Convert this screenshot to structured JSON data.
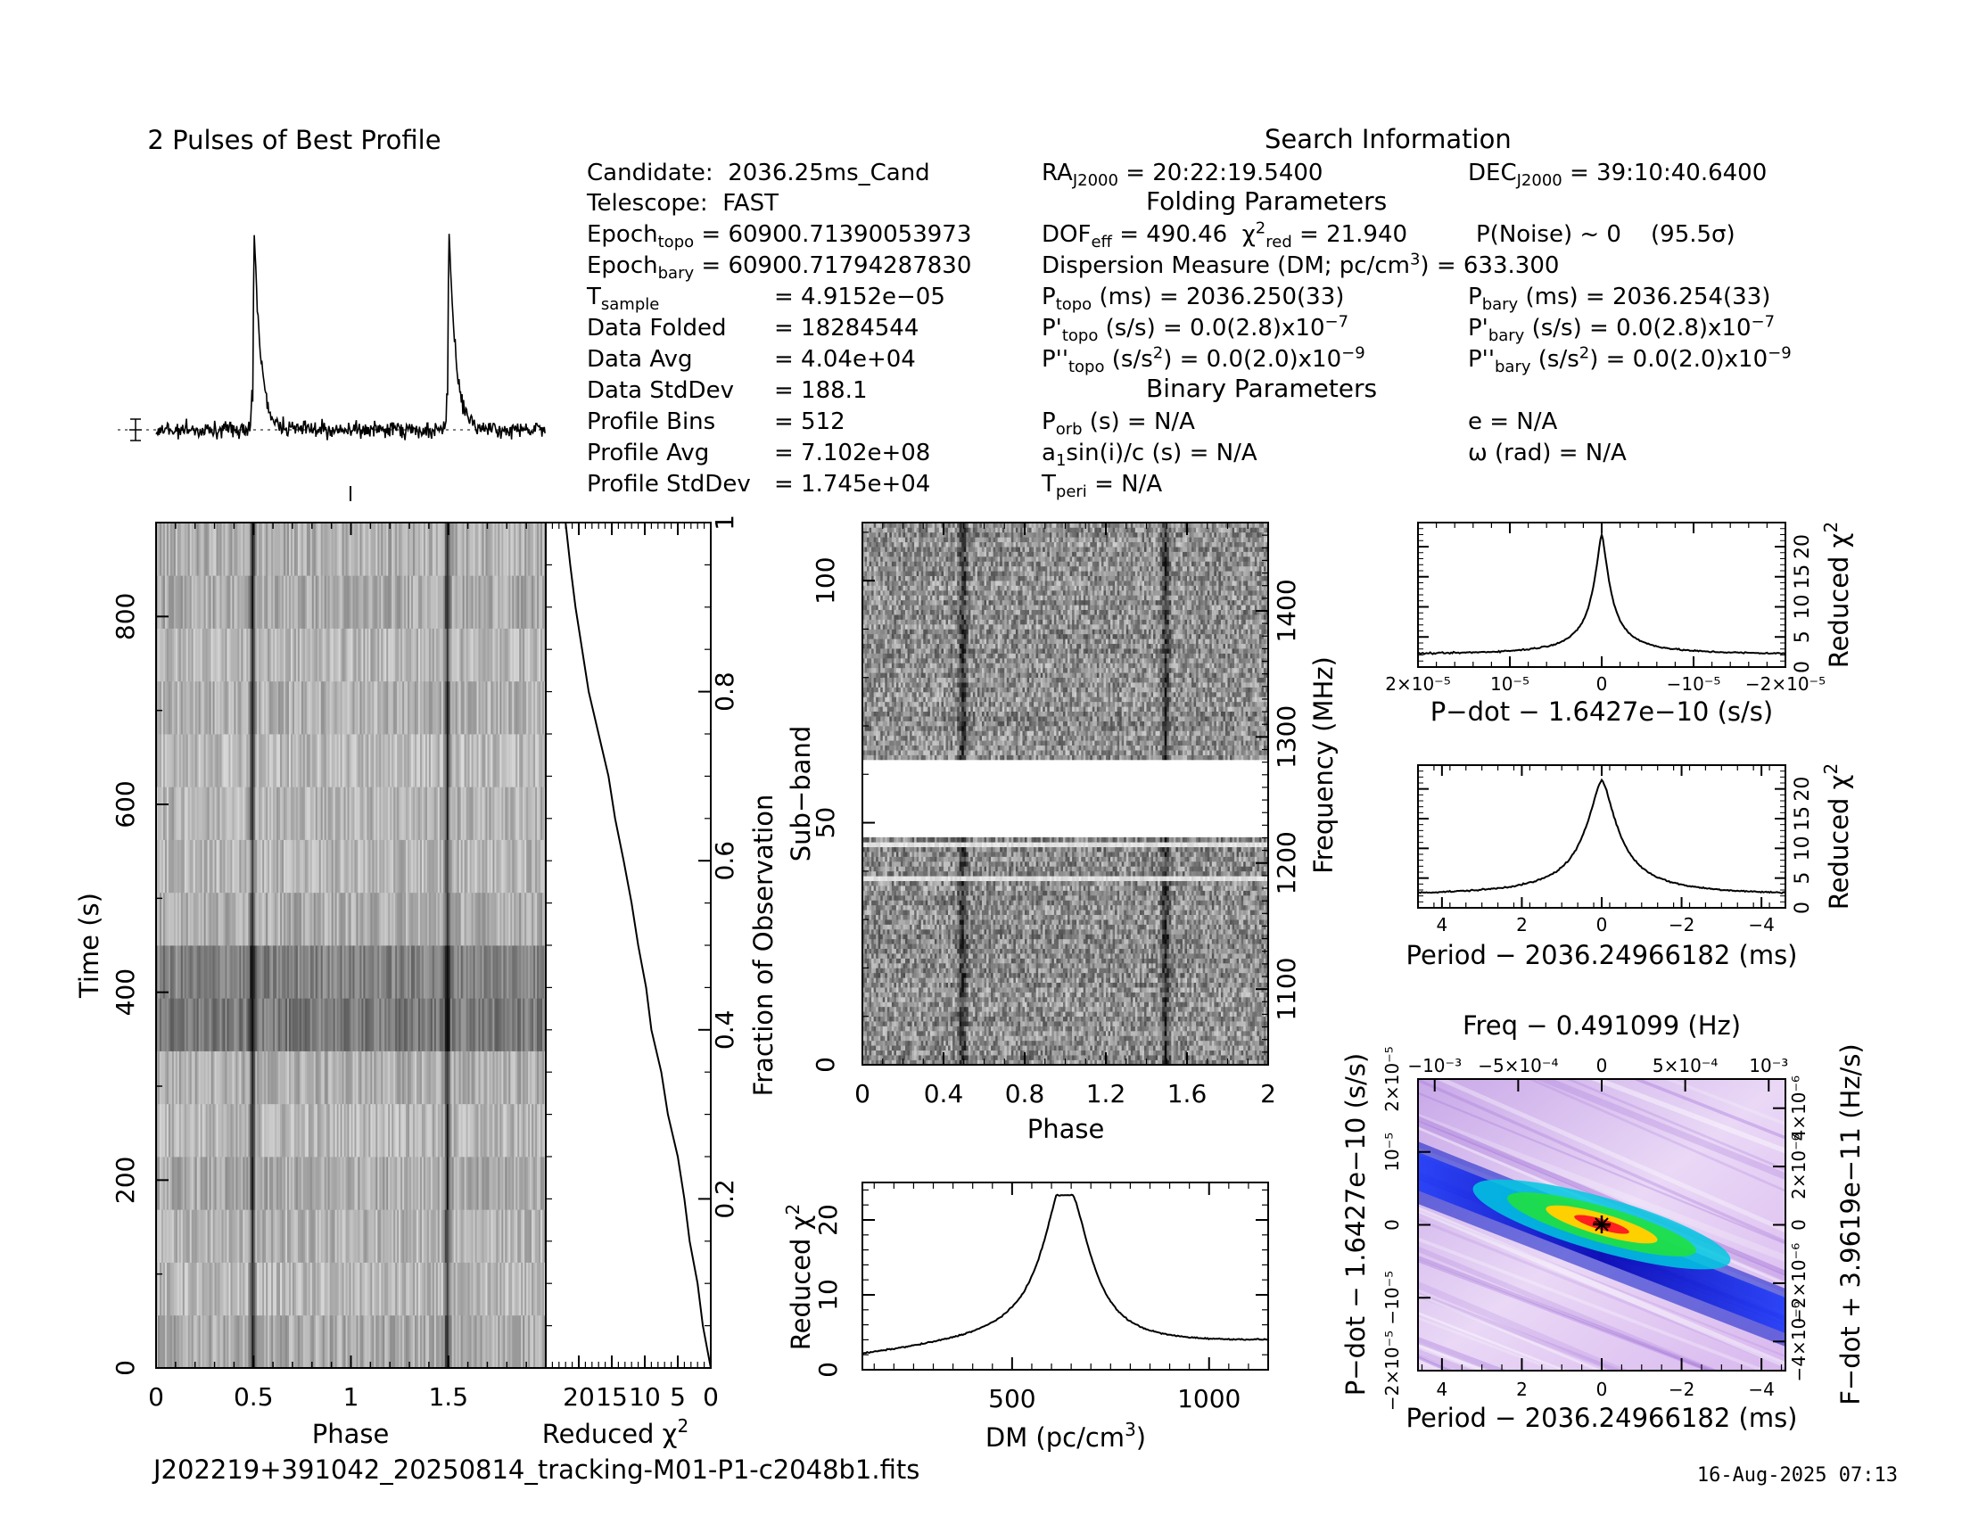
{
  "profile_title": "2 Pulses of Best Profile",
  "search_info_title": "Search Information",
  "folding_title": "Folding Parameters",
  "binary_title": "Binary Parameters",
  "filename": "J202219+391042_20250814_tracking-M01-P1-c2048b1.fits",
  "timestamp": "16-Aug-2025 07:13",
  "left_params": {
    "candidate_label": "Candidate:",
    "candidate_value": "2036.25ms_Cand",
    "telescope_label": "Telescope:",
    "telescope_value": "FAST",
    "epoch_topo_label": "Epoch",
    "epoch_topo_sub": "topo",
    "epoch_topo_value": "= 60900.71390053973",
    "epoch_bary_label": "Epoch",
    "epoch_bary_sub": "bary",
    "epoch_bary_value": "= 60900.71794287830",
    "tsample_label": "T",
    "tsample_sub": "sample",
    "tsample_value": "=  4.9152e−05",
    "data_folded_label": "Data Folded",
    "data_folded_value": "=  18284544",
    "data_avg_label": "Data Avg",
    "data_avg_value": "=  4.04e+04",
    "data_std_label": "Data StdDev",
    "data_std_value": "=  188.1",
    "prof_bins_label": "Profile Bins",
    "prof_bins_value": "=  512",
    "prof_avg_label": "Profile Avg",
    "prof_avg_value": "=  7.102e+08",
    "prof_std_label": "Profile StdDev",
    "prof_std_value": "=  1.745e+04"
  },
  "mid_params": {
    "ra_label": "RA",
    "ra_sub": "J2000",
    "ra_value": "= 20:22:19.5400",
    "dof_label": "DOF",
    "dof_sub": "eff",
    "dof_value": "= 490.46",
    "chi_label": "χ",
    "chi_sup": "2",
    "chi_sub": "red",
    "chi_value": "= 21.940",
    "pnoise_label": "P(Noise) ~ 0",
    "pnoise_sigma": "(95.5σ)",
    "dm_line_a": "Dispersion Measure (DM; pc/cm",
    "dm_line_sup": "3",
    "dm_line_b": ") = 633.300",
    "ptopo_label": "P",
    "ptopo_sub": "topo",
    "ptopo_value": "(ms)  =  2036.250(33)",
    "pdtopo_label": "P'",
    "pdtopo_sub": "topo",
    "pdtopo_value": "(s/s) = 0.0(2.8)x10",
    "pdtopo_exp": "−7",
    "pddtopo_label": "P''",
    "pddtopo_sub": "topo",
    "pddtopo_value_a": "(s/s",
    "pddtopo_value_sup": "2",
    "pddtopo_value_b": ") = 0.0(2.0)x10",
    "pddtopo_exp": "−9",
    "porb_label": "P",
    "porb_sub": "orb",
    "porb_value": "(s) = N/A",
    "a1_label": "a",
    "a1_sub": "1",
    "a1_value": "sin(i)/c (s) = N/A",
    "tperi_label": "T",
    "tperi_sub": "peri",
    "tperi_value": "= N/A"
  },
  "right_params": {
    "dec_label": "DEC",
    "dec_sub": "J2000",
    "dec_value": "= 39:10:40.6400",
    "pbary_label": "P",
    "pbary_sub": "bary",
    "pbary_value": "(ms) =  2036.254(33)",
    "pdbary_label": "P'",
    "pdbary_sub": "bary",
    "pdbary_value": "(s/s) = 0.0(2.8)x10",
    "pdbary_exp": "−7",
    "pddbary_label": "P''",
    "pddbary_sub": "bary",
    "pddbary_value_a": "(s/s",
    "pddbary_value_sup": "2",
    "pddbary_value_b": ") = 0.0(2.0)x10",
    "pddbary_exp": "−9",
    "e_value": "e = N/A",
    "omega_value": "ω (rad) = N/A"
  },
  "chart_data": [
    {
      "id": "profile",
      "type": "line",
      "title": "2 Pulses of Best Profile",
      "xlim": [
        0,
        2
      ],
      "peaks_phase": [
        0.495,
        1.495
      ],
      "peak_height_rel": 1.0,
      "baseline_rel": 0.0
    },
    {
      "id": "time_phase",
      "type": "heatmap",
      "xlabel": "Phase",
      "ylabel": "Time (s)",
      "xlim": [
        0,
        2
      ],
      "ylim": [
        0,
        900
      ],
      "x_ticks": [
        "0",
        "0.5",
        "1",
        "1.5"
      ],
      "x_tick_values": [
        0,
        0.5,
        1,
        1.5
      ],
      "y_ticks": [
        "0",
        "200",
        "400",
        "600",
        "800"
      ],
      "y_tick_values": [
        0,
        200,
        400,
        600,
        800
      ],
      "pulse_phases": [
        0.495,
        1.495
      ],
      "time_segments": 16,
      "dark_segments_s": [
        [
          340,
          395
        ],
        [
          395,
          455
        ]
      ]
    },
    {
      "id": "chi_vs_time",
      "type": "line",
      "xlabel": "Reduced χ",
      "xlabel_sup": "2",
      "ylabel_right": "Fraction of Observation",
      "x_ticks": [
        "20",
        "15",
        "10",
        "5",
        "0"
      ],
      "x_tick_values": [
        20,
        15,
        10,
        5,
        0
      ],
      "x_range": [
        25,
        0
      ],
      "y_ticks": [
        "0.2",
        "0.4",
        "0.6",
        "0.8",
        "1"
      ],
      "y_tick_values": [
        0.2,
        0.4,
        0.6,
        0.8,
        1
      ],
      "ylim": [
        0,
        1
      ],
      "points": [
        [
          0,
          0
        ],
        [
          0.05,
          1.2
        ],
        [
          0.1,
          2.0
        ],
        [
          0.15,
          3.2
        ],
        [
          0.2,
          4.0
        ],
        [
          0.25,
          5.0
        ],
        [
          0.3,
          6.5
        ],
        [
          0.35,
          7.5
        ],
        [
          0.4,
          9.0
        ],
        [
          0.45,
          9.8
        ],
        [
          0.5,
          11.0
        ],
        [
          0.55,
          12.0
        ],
        [
          0.6,
          13.2
        ],
        [
          0.65,
          14.5
        ],
        [
          0.7,
          15.5
        ],
        [
          0.75,
          17.0
        ],
        [
          0.8,
          18.5
        ],
        [
          0.85,
          19.5
        ],
        [
          0.9,
          20.5
        ],
        [
          0.95,
          21.3
        ],
        [
          1.0,
          22.0
        ]
      ]
    },
    {
      "id": "subband_phase",
      "type": "heatmap",
      "xlabel": "Phase",
      "ylabel": "Sub−band",
      "ylabel_right": "Frequency (MHz)",
      "xlim": [
        0,
        2
      ],
      "ylim": [
        0,
        112
      ],
      "x_ticks": [
        "0",
        "0.4",
        "0.8",
        "1.2",
        "1.6",
        "2"
      ],
      "x_tick_values": [
        0,
        0.4,
        0.8,
        1.2,
        1.6,
        2
      ],
      "y_ticks": [
        "0",
        "50",
        "100"
      ],
      "y_tick_values": [
        0,
        50,
        100
      ],
      "freq_ticks": [
        "1100",
        "1200",
        "1300",
        "1400"
      ],
      "freq_tick_values": [
        1100,
        1200,
        1300,
        1400
      ],
      "freq_range": [
        1040,
        1470
      ],
      "pulse_phases": [
        0.495,
        1.495
      ],
      "masked_bands": [
        [
          47,
          63
        ]
      ],
      "weak_bands": [
        [
          38,
          39
        ],
        [
          45,
          46
        ]
      ]
    },
    {
      "id": "dm_curve",
      "type": "line",
      "xlabel": "DM (pc/cm",
      "xlabel_sup": "3",
      "xlabel_end": ")",
      "ylabel": "Reduced χ",
      "ylabel_sup": "2",
      "xlim": [
        120,
        1150
      ],
      "ylim": [
        0,
        25
      ],
      "x_ticks": [
        "500",
        "1000"
      ],
      "x_tick_values": [
        500,
        1000
      ],
      "y_ticks": [
        "0",
        "10",
        "20"
      ],
      "y_tick_values": [
        0,
        10,
        20
      ],
      "peak_x": 640,
      "peak_y": 23.3,
      "base_y": 1.8
    },
    {
      "id": "pdot_curve",
      "type": "line",
      "xlabel": "P−dot − 1.6427e−10 (s/s)",
      "ylabel_right": "Reduced χ",
      "ylabel_right_sup": "2",
      "xlim": [
        2e-05,
        -2e-05
      ],
      "ylim": [
        0,
        24
      ],
      "x_ticks": [
        "2×10⁻⁵",
        "10⁻⁵",
        "0",
        "−10⁻⁵",
        "−2×10⁻⁵"
      ],
      "x_tick_values": [
        2e-05,
        1e-05,
        0,
        -1e-05,
        -2e-05
      ],
      "y_ticks": [
        "0",
        "5",
        "10",
        "15",
        "20"
      ],
      "y_tick_values": [
        0,
        5,
        10,
        15,
        20
      ],
      "peak_x": 0,
      "peak_y": 22.0,
      "base_y": 2.0
    },
    {
      "id": "period_curve",
      "type": "line",
      "xlabel": "Period − 2036.24966182 (ms)",
      "ylabel_right": "Reduced χ",
      "ylabel_right_sup": "2",
      "xlim": [
        4.6,
        -4.6
      ],
      "ylim": [
        0,
        24
      ],
      "x_ticks": [
        "4",
        "2",
        "0",
        "−2",
        "−4"
      ],
      "x_tick_values": [
        4,
        2,
        0,
        -2,
        -4
      ],
      "y_ticks": [
        "0",
        "5",
        "10",
        "15",
        "20"
      ],
      "y_tick_values": [
        0,
        5,
        10,
        15,
        20
      ],
      "peak_x": 0,
      "peak_y": 21.5,
      "base_y": 2.0
    },
    {
      "id": "period_pdot",
      "type": "heatmap",
      "title": "Freq − 0.491099 (Hz)",
      "xlabel": "Period − 2036.24966182 (ms)",
      "ylabel": "P−dot − 1.6427e−10 (s/s)",
      "ylabel_right": "F−dot + 3.9619e−11 (Hz/s)",
      "xlim": [
        4.6,
        -4.6
      ],
      "ylim": [
        2e-05,
        -2e-05
      ],
      "x_ticks": [
        "4",
        "2",
        "0",
        "−2",
        "−4"
      ],
      "x_tick_values": [
        4,
        2,
        0,
        -2,
        -4
      ],
      "top_ticks": [
        "−10⁻³",
        "−5×10⁻⁴",
        "0",
        "5×10⁻⁴",
        "10⁻³"
      ],
      "top_tick_values": [
        -0.001,
        -0.0005,
        0,
        0.0005,
        0.001
      ],
      "y_ticks": [
        "2×10⁻⁵",
        "10⁻⁵",
        "0",
        "−10⁻⁵",
        "−2×10⁻⁵"
      ],
      "y_tick_values": [
        2e-05,
        1e-05,
        0,
        -1e-05,
        -2e-05
      ],
      "right_ticks": [
        "−4×10⁻⁶",
        "−2×10⁻⁶",
        "0",
        "2×10⁻⁶",
        "4×10⁻⁶"
      ],
      "right_tick_values": [
        -4e-06,
        -2e-06,
        0,
        2e-06,
        4e-06
      ],
      "best_period": 0,
      "best_pdot": 0
    }
  ],
  "colors": {
    "ink": "#000000",
    "paper": "#ffffff"
  }
}
